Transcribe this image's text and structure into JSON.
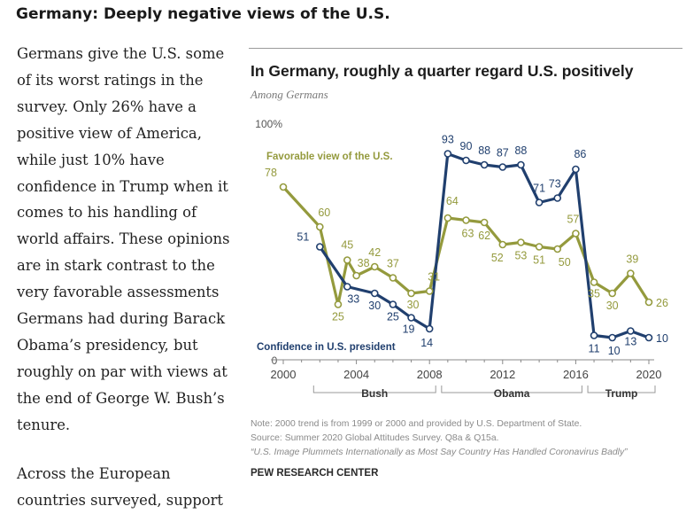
{
  "headline": "Germany: Deeply negative views of the U.S.",
  "article": {
    "paragraphs": [
      "Germans give the U.S. some of its worst ratings in the survey. Only 26% have a positive view of America, while just 10% have confidence in Trump when it comes to his handling of world affairs. These opinions are in stark contrast to the very favorable assessments Germans had during Barack Obama’s presidency, but roughly on par with views at the end of George W. Bush’s tenure.",
      "Across the European countries surveyed, support"
    ]
  },
  "chart_data": {
    "type": "line",
    "title": "In Germany, roughly a quarter regard U.S. positively",
    "subtitle": "Among Germans",
    "y_max_label": "100%",
    "y_zero_label": "0",
    "ylim": [
      0,
      100
    ],
    "xlim": [
      2000,
      2020
    ],
    "x_ticks": [
      2000,
      2004,
      2008,
      2012,
      2016,
      2020
    ],
    "x_tick_labels": [
      "2000",
      "2004",
      "2008",
      "2012",
      "2016",
      "2020"
    ],
    "grid": false,
    "series": [
      {
        "name": "Favorable view of the U.S.",
        "color": "#949a3d",
        "points": [
          {
            "x": 2000,
            "y": 78,
            "label": "78"
          },
          {
            "x": 2002,
            "y": 60,
            "label": "60"
          },
          {
            "x": 2003,
            "y": 25,
            "label": "25"
          },
          {
            "x": 2003.5,
            "y": 45,
            "label": "45"
          },
          {
            "x": 2004,
            "y": 38,
            "label": "38"
          },
          {
            "x": 2005,
            "y": 42,
            "label": "42"
          },
          {
            "x": 2006,
            "y": 37,
            "label": "37"
          },
          {
            "x": 2007,
            "y": 30,
            "label": "30"
          },
          {
            "x": 2008,
            "y": 31,
            "label": "31"
          },
          {
            "x": 2009,
            "y": 64,
            "label": "64"
          },
          {
            "x": 2010,
            "y": 63,
            "label": "63"
          },
          {
            "x": 2011,
            "y": 62,
            "label": "62"
          },
          {
            "x": 2012,
            "y": 52,
            "label": "52"
          },
          {
            "x": 2013,
            "y": 53,
            "label": "53"
          },
          {
            "x": 2014,
            "y": 51,
            "label": "51"
          },
          {
            "x": 2015,
            "y": 50,
            "label": "50"
          },
          {
            "x": 2016,
            "y": 57,
            "label": "57"
          },
          {
            "x": 2017,
            "y": 35,
            "label": "35"
          },
          {
            "x": 2018,
            "y": 30,
            "label": "30"
          },
          {
            "x": 2019,
            "y": 39,
            "label": "39"
          },
          {
            "x": 2020,
            "y": 26,
            "label": "26"
          }
        ]
      },
      {
        "name": "Confidence in U.S. president",
        "color": "#203f6e",
        "points": [
          {
            "x": 2002,
            "y": 51,
            "label": "51"
          },
          {
            "x": 2003.5,
            "y": 33,
            "label": "33"
          },
          {
            "x": 2005,
            "y": 30,
            "label": "30"
          },
          {
            "x": 2006,
            "y": 25,
            "label": "25"
          },
          {
            "x": 2007,
            "y": 19,
            "label": "19"
          },
          {
            "x": 2008,
            "y": 14,
            "label": "14"
          },
          {
            "x": 2009,
            "y": 93,
            "label": "93"
          },
          {
            "x": 2010,
            "y": 90,
            "label": "90"
          },
          {
            "x": 2011,
            "y": 88,
            "label": "88"
          },
          {
            "x": 2012,
            "y": 87,
            "label": "87"
          },
          {
            "x": 2013,
            "y": 88,
            "label": "88"
          },
          {
            "x": 2014,
            "y": 71,
            "label": "71"
          },
          {
            "x": 2015,
            "y": 73,
            "label": "73"
          },
          {
            "x": 2016,
            "y": 86,
            "label": "86"
          },
          {
            "x": 2017,
            "y": 11,
            "label": "11"
          },
          {
            "x": 2018,
            "y": 10,
            "label": "10"
          },
          {
            "x": 2019,
            "y": 13,
            "label": "13"
          },
          {
            "x": 2020,
            "y": 10,
            "label": "10"
          }
        ]
      }
    ],
    "eras": [
      {
        "label": "Bush",
        "from": 2002,
        "to": 2008
      },
      {
        "label": "Obama",
        "from": 2009,
        "to": 2016
      },
      {
        "label": "Trump",
        "from": 2017,
        "to": 2020
      }
    ]
  },
  "notes": [
    "Note: 2000 trend is from 1999 or 2000 and provided by U.S. Department of State.",
    "Source: Summer 2020 Global Attitudes Survey. Q8a & Q15a.",
    "“U.S. Image Plummets Internationally as Most Say Country Has Handled Coronavirus Badly”"
  ],
  "brand": "PEW RESEARCH CENTER"
}
